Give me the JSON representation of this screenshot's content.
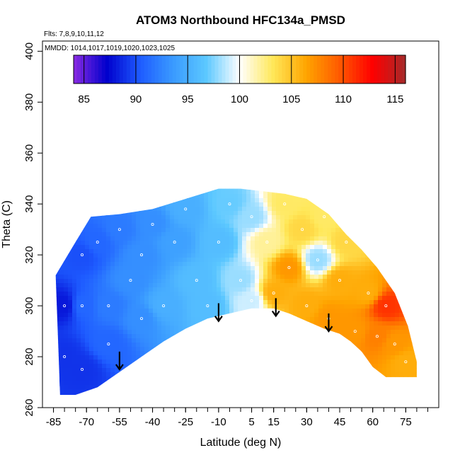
{
  "chart_data": {
    "type": "heatmap",
    "title": "ATOM3 Northbound HFC134a_PMSD",
    "subtitle_flights": "Flts: 7,8,9,10,11,12",
    "subtitle_dates": "MMDD: 1014,1017,1019,1020,1023,1025",
    "xlabel": "Latitude (deg N)",
    "ylabel": "Theta (C)",
    "xlim": [
      -90,
      90
    ],
    "ylim": [
      260,
      404
    ],
    "x_ticks": [
      -85,
      -70,
      -55,
      -40,
      -25,
      -10,
      5,
      15,
      30,
      45,
      60,
      75
    ],
    "y_ticks": [
      260,
      280,
      300,
      320,
      340,
      360,
      380,
      400
    ],
    "colorbar": {
      "ticks": [
        85,
        90,
        95,
        100,
        105,
        110,
        115
      ],
      "range": [
        84,
        116
      ],
      "colors": [
        "#8a2be2",
        "#0000cd",
        "#1e5bff",
        "#3a9bff",
        "#5cc8ff",
        "#ffffff",
        "#ffe85a",
        "#ffa500",
        "#ff5a00",
        "#ff0000",
        "#a52a2a"
      ]
    },
    "boundary": {
      "lat_top": [
        [
          -84,
          312
        ],
        [
          -75,
          325
        ],
        [
          -68,
          335
        ],
        [
          -55,
          336
        ],
        [
          -40,
          338
        ],
        [
          -25,
          342
        ],
        [
          -10,
          346
        ],
        [
          0,
          346
        ],
        [
          10,
          345
        ],
        [
          20,
          344
        ],
        [
          30,
          342
        ],
        [
          40,
          336
        ],
        [
          48,
          328
        ],
        [
          55,
          322
        ],
        [
          62,
          315
        ],
        [
          70,
          305
        ],
        [
          76,
          292
        ],
        [
          80,
          278
        ]
      ],
      "lat_bottom": [
        [
          80,
          272
        ],
        [
          72,
          272
        ],
        [
          66,
          272
        ],
        [
          60,
          276
        ],
        [
          55,
          282
        ],
        [
          50,
          286
        ],
        [
          45,
          289
        ],
        [
          38,
          291
        ],
        [
          30,
          294
        ],
        [
          22,
          297
        ],
        [
          15,
          299
        ],
        [
          5,
          299
        ],
        [
          -5,
          297
        ],
        [
          -15,
          295
        ],
        [
          -25,
          291
        ],
        [
          -35,
          286
        ],
        [
          -45,
          280
        ],
        [
          -55,
          274
        ],
        [
          -65,
          268
        ],
        [
          -75,
          265
        ],
        [
          -82,
          265
        ]
      ]
    },
    "field_points": [
      {
        "lat": -80,
        "theta": 300,
        "value": 88
      },
      {
        "lat": -80,
        "theta": 280,
        "value": 89
      },
      {
        "lat": -72,
        "theta": 320,
        "value": 90
      },
      {
        "lat": -72,
        "theta": 300,
        "value": 91
      },
      {
        "lat": -72,
        "theta": 275,
        "value": 89
      },
      {
        "lat": -65,
        "theta": 325,
        "value": 91
      },
      {
        "lat": -60,
        "theta": 300,
        "value": 92
      },
      {
        "lat": -60,
        "theta": 285,
        "value": 91
      },
      {
        "lat": -55,
        "theta": 330,
        "value": 92
      },
      {
        "lat": -50,
        "theta": 310,
        "value": 93
      },
      {
        "lat": -45,
        "theta": 320,
        "value": 93
      },
      {
        "lat": -45,
        "theta": 295,
        "value": 93
      },
      {
        "lat": -40,
        "theta": 332,
        "value": 93
      },
      {
        "lat": -35,
        "theta": 300,
        "value": 95
      },
      {
        "lat": -30,
        "theta": 325,
        "value": 94
      },
      {
        "lat": -25,
        "theta": 338,
        "value": 95
      },
      {
        "lat": -20,
        "theta": 310,
        "value": 96
      },
      {
        "lat": -15,
        "theta": 300,
        "value": 96
      },
      {
        "lat": -10,
        "theta": 325,
        "value": 96
      },
      {
        "lat": -5,
        "theta": 340,
        "value": 97
      },
      {
        "lat": 0,
        "theta": 310,
        "value": 98
      },
      {
        "lat": 5,
        "theta": 302,
        "value": 99
      },
      {
        "lat": 5,
        "theta": 335,
        "value": 98
      },
      {
        "lat": 12,
        "theta": 325,
        "value": 102
      },
      {
        "lat": 15,
        "theta": 305,
        "value": 106
      },
      {
        "lat": 20,
        "theta": 340,
        "value": 103
      },
      {
        "lat": 22,
        "theta": 315,
        "value": 107
      },
      {
        "lat": 28,
        "theta": 330,
        "value": 104
      },
      {
        "lat": 30,
        "theta": 300,
        "value": 106
      },
      {
        "lat": 35,
        "theta": 318,
        "value": 98
      },
      {
        "lat": 38,
        "theta": 335,
        "value": 103
      },
      {
        "lat": 40,
        "theta": 295,
        "value": 107
      },
      {
        "lat": 45,
        "theta": 310,
        "value": 106
      },
      {
        "lat": 48,
        "theta": 325,
        "value": 104
      },
      {
        "lat": 52,
        "theta": 290,
        "value": 107
      },
      {
        "lat": 58,
        "theta": 305,
        "value": 106
      },
      {
        "lat": 62,
        "theta": 288,
        "value": 108
      },
      {
        "lat": 66,
        "theta": 300,
        "value": 111
      },
      {
        "lat": 70,
        "theta": 285,
        "value": 107
      },
      {
        "lat": 75,
        "theta": 278,
        "value": 106
      }
    ],
    "arrows": [
      {
        "lat": -55,
        "theta_top": 282,
        "theta_bottom": 275
      },
      {
        "lat": -10,
        "theta_top": 301,
        "theta_bottom": 294
      },
      {
        "lat": 16,
        "theta_top": 303,
        "theta_bottom": 296
      },
      {
        "lat": 40,
        "theta_top": 297,
        "theta_bottom": 290
      }
    ]
  }
}
